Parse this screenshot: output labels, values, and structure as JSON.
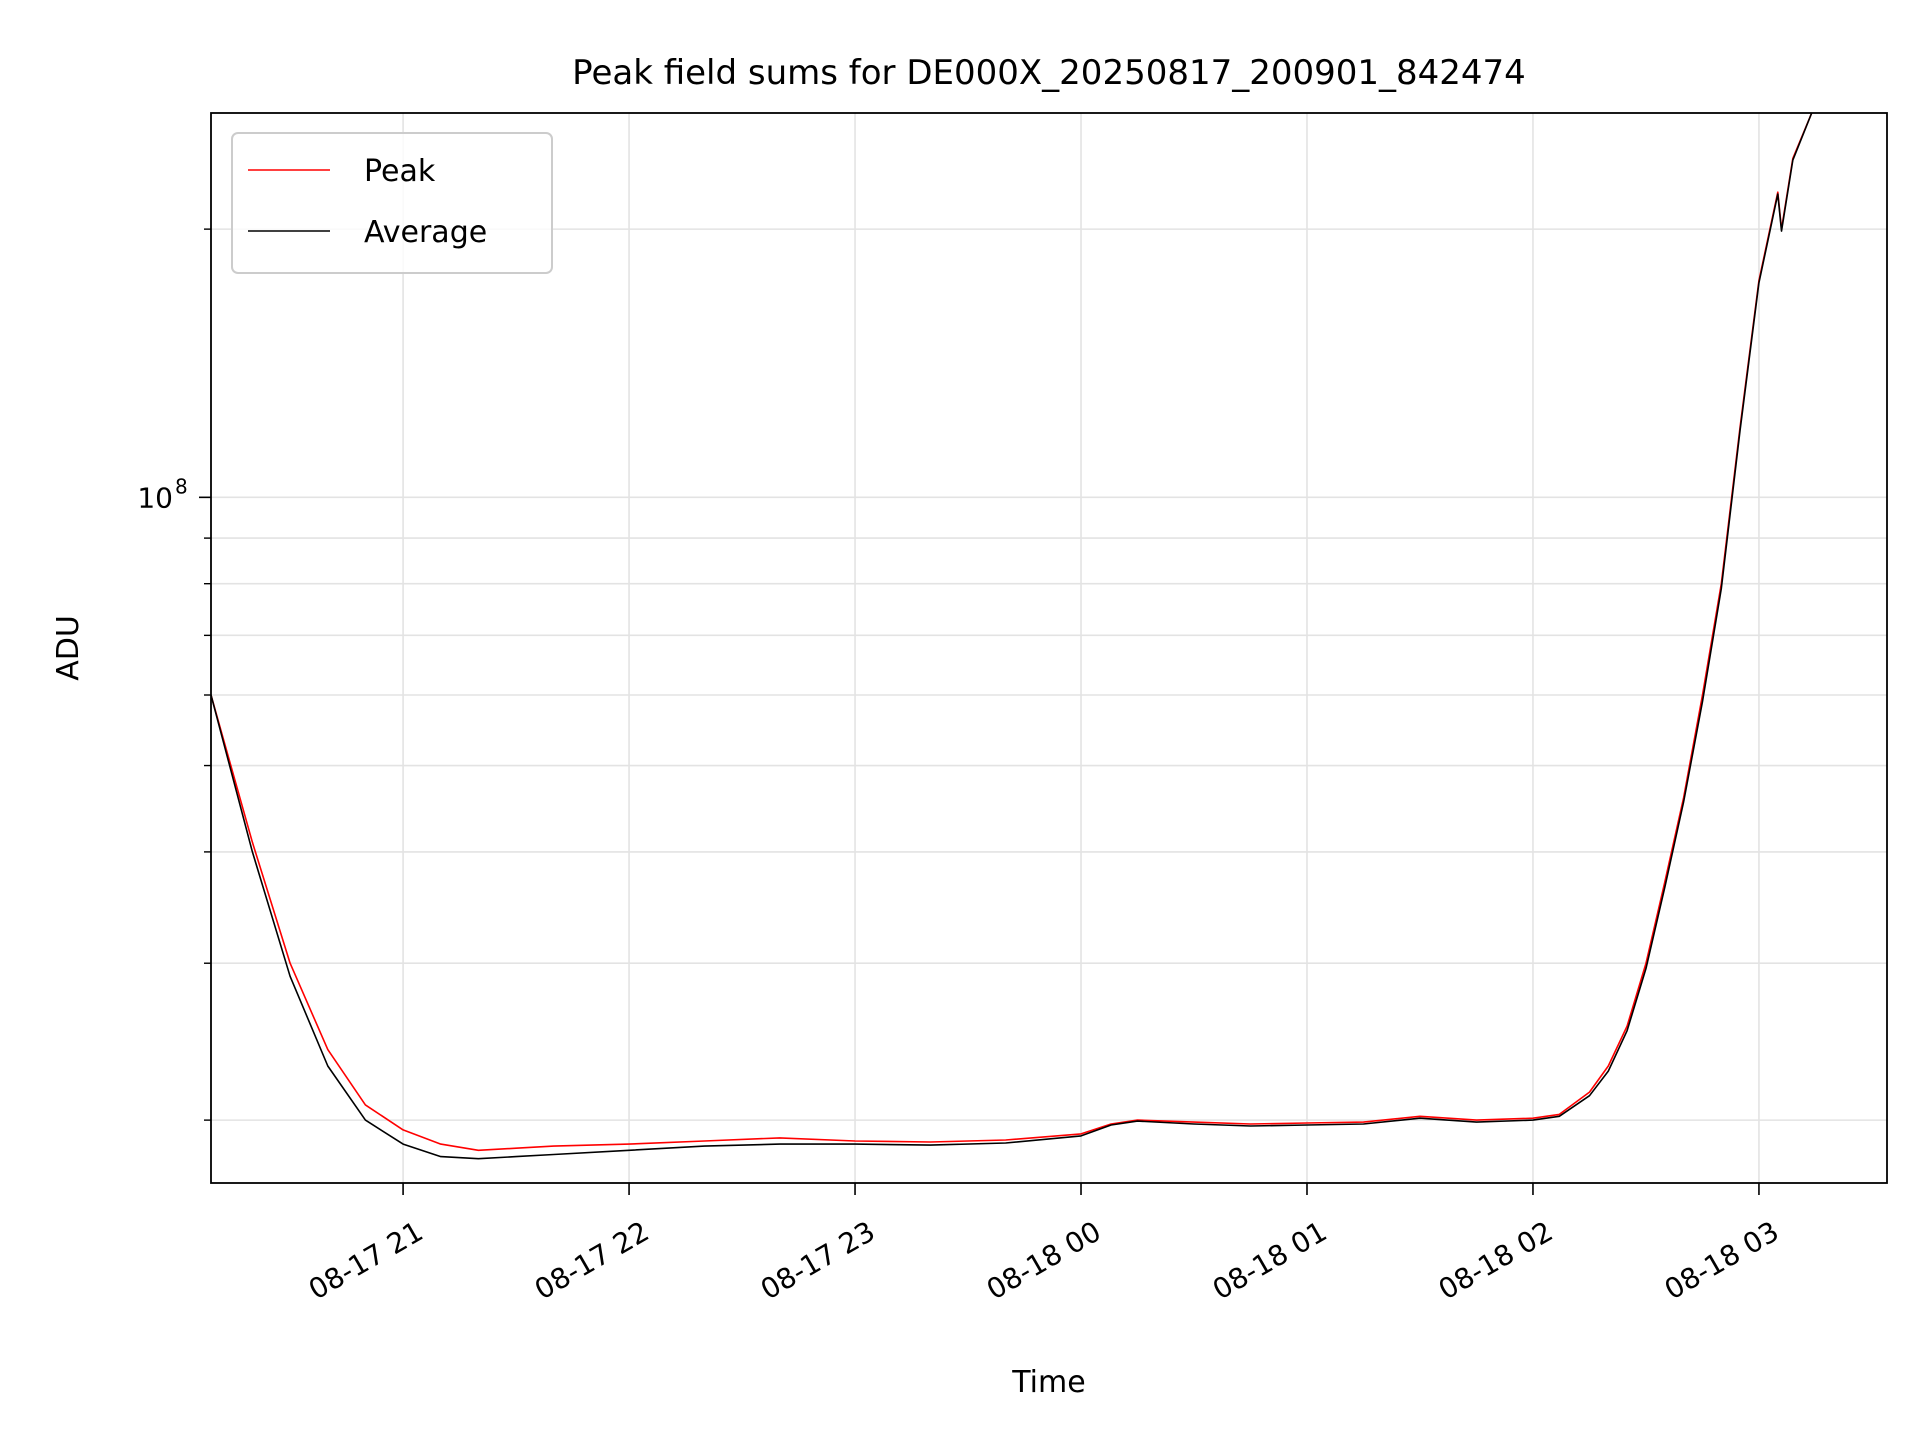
{
  "chart_data": {
    "type": "line",
    "title": "Peak field sums for DE000X_20250817_200901_842474",
    "xlabel": "Time",
    "ylabel": "ADU",
    "y_scale": "log",
    "ylim": [
      17000000,
      270000000
    ],
    "xlim": [
      "2025-08-17 20:09",
      "2025-08-18 03:34"
    ],
    "x_tick_labels": [
      "08-17 21",
      "08-17 22",
      "08-17 23",
      "08-18 00",
      "08-18 01",
      "08-18 02",
      "08-18 03"
    ],
    "x_ticks": [
      "2025-08-17 21:00",
      "2025-08-17 22:00",
      "2025-08-17 23:00",
      "2025-08-18 00:00",
      "2025-08-18 01:00",
      "2025-08-18 02:00",
      "2025-08-18 03:00"
    ],
    "y_tick_major": [
      {
        "value": 100000000,
        "base": "10",
        "exp": "8"
      }
    ],
    "y_tick_minor": [
      20000000,
      30000000,
      40000000,
      50000000,
      60000000,
      70000000,
      80000000,
      90000000,
      200000000
    ],
    "grid": true,
    "legend": {
      "placement": "top-left",
      "entries": [
        "Peak",
        "Average"
      ]
    },
    "series": [
      {
        "name": "Peak",
        "color": "#ff0000",
        "points": [
          [
            "2025-08-17 20:09",
            60000000
          ],
          [
            "2025-08-17 20:20",
            41000000
          ],
          [
            "2025-08-17 20:30",
            30000000
          ],
          [
            "2025-08-17 20:40",
            24000000
          ],
          [
            "2025-08-17 20:50",
            20800000
          ],
          [
            "2025-08-17 21:00",
            19500000
          ],
          [
            "2025-08-17 21:10",
            18800000
          ],
          [
            "2025-08-17 21:20",
            18500000
          ],
          [
            "2025-08-17 21:30",
            18600000
          ],
          [
            "2025-08-17 21:40",
            18700000
          ],
          [
            "2025-08-17 22:00",
            18800000
          ],
          [
            "2025-08-17 22:20",
            18950000
          ],
          [
            "2025-08-17 22:40",
            19100000
          ],
          [
            "2025-08-17 23:00",
            18950000
          ],
          [
            "2025-08-17 23:20",
            18900000
          ],
          [
            "2025-08-17 23:40",
            19000000
          ],
          [
            "2025-08-18 00:00",
            19300000
          ],
          [
            "2025-08-18 00:08",
            19800000
          ],
          [
            "2025-08-18 00:15",
            20000000
          ],
          [
            "2025-08-18 00:30",
            19900000
          ],
          [
            "2025-08-18 00:45",
            19800000
          ],
          [
            "2025-08-18 01:00",
            19850000
          ],
          [
            "2025-08-18 01:15",
            19900000
          ],
          [
            "2025-08-18 01:30",
            20200000
          ],
          [
            "2025-08-18 01:45",
            20000000
          ],
          [
            "2025-08-18 02:00",
            20100000
          ],
          [
            "2025-08-18 02:07",
            20300000
          ],
          [
            "2025-08-18 02:15",
            21500000
          ],
          [
            "2025-08-18 02:20",
            23000000
          ],
          [
            "2025-08-18 02:25",
            25500000
          ],
          [
            "2025-08-18 02:30",
            30000000
          ],
          [
            "2025-08-18 02:35",
            37000000
          ],
          [
            "2025-08-18 02:40",
            46000000
          ],
          [
            "2025-08-18 02:45",
            60000000
          ],
          [
            "2025-08-18 02:50",
            80000000
          ],
          [
            "2025-08-18 02:55",
            120000000
          ],
          [
            "2025-08-18 03:00",
            175000000
          ],
          [
            "2025-08-18 03:05",
            220000000
          ],
          [
            "2025-08-18 03:06",
            200000000
          ],
          [
            "2025-08-18 03:09",
            240000000
          ],
          [
            "2025-08-18 03:14",
            270000000
          ]
        ]
      },
      {
        "name": "Average",
        "color": "#000000",
        "points": [
          [
            "2025-08-17 20:09",
            60000000
          ],
          [
            "2025-08-17 20:20",
            40000000
          ],
          [
            "2025-08-17 20:30",
            29000000
          ],
          [
            "2025-08-17 20:40",
            23000000
          ],
          [
            "2025-08-17 20:50",
            20000000
          ],
          [
            "2025-08-17 21:00",
            18800000
          ],
          [
            "2025-08-17 21:10",
            18200000
          ],
          [
            "2025-08-17 21:20",
            18100000
          ],
          [
            "2025-08-17 21:30",
            18200000
          ],
          [
            "2025-08-17 21:40",
            18300000
          ],
          [
            "2025-08-17 22:00",
            18500000
          ],
          [
            "2025-08-17 22:20",
            18700000
          ],
          [
            "2025-08-17 22:40",
            18800000
          ],
          [
            "2025-08-17 23:00",
            18800000
          ],
          [
            "2025-08-17 23:20",
            18750000
          ],
          [
            "2025-08-17 23:40",
            18850000
          ],
          [
            "2025-08-18 00:00",
            19200000
          ],
          [
            "2025-08-18 00:08",
            19750000
          ],
          [
            "2025-08-18 00:15",
            19950000
          ],
          [
            "2025-08-18 00:30",
            19800000
          ],
          [
            "2025-08-18 00:45",
            19700000
          ],
          [
            "2025-08-18 01:00",
            19750000
          ],
          [
            "2025-08-18 01:15",
            19800000
          ],
          [
            "2025-08-18 01:30",
            20100000
          ],
          [
            "2025-08-18 01:45",
            19900000
          ],
          [
            "2025-08-18 02:00",
            20000000
          ],
          [
            "2025-08-18 02:07",
            20200000
          ],
          [
            "2025-08-18 02:15",
            21300000
          ],
          [
            "2025-08-18 02:20",
            22700000
          ],
          [
            "2025-08-18 02:25",
            25200000
          ],
          [
            "2025-08-18 02:30",
            29600000
          ],
          [
            "2025-08-18 02:35",
            36500000
          ],
          [
            "2025-08-18 02:40",
            45500000
          ],
          [
            "2025-08-18 02:45",
            59000000
          ],
          [
            "2025-08-18 02:50",
            79000000
          ],
          [
            "2025-08-18 02:55",
            119000000
          ],
          [
            "2025-08-18 03:00",
            174000000
          ],
          [
            "2025-08-18 03:05",
            219000000
          ],
          [
            "2025-08-18 03:06",
            199000000
          ],
          [
            "2025-08-18 03:09",
            239000000
          ],
          [
            "2025-08-18 03:14",
            270000000
          ]
        ]
      }
    ]
  }
}
